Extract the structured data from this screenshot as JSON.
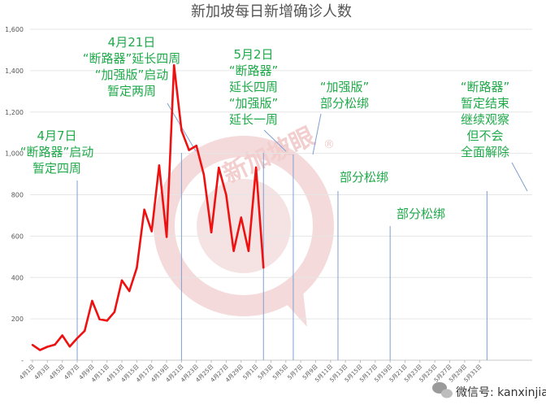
{
  "chart_data": {
    "type": "line",
    "title": "新加坡每日新增确诊人数",
    "xlabel": "",
    "ylabel": "",
    "ylim": [
      0,
      1600
    ],
    "y_ticks": [
      "-",
      "200",
      "400",
      "600",
      "800",
      "1,000",
      "1,200",
      "1,400",
      "1,600"
    ],
    "grid": true,
    "x_ticks": [
      "4月1日",
      "4月3日",
      "4月5日",
      "4月7日",
      "4月9日",
      "4月11日",
      "4月13日",
      "4月15日",
      "4月17日",
      "4月19日",
      "4月21日",
      "4月23日",
      "4月25日",
      "4月27日",
      "4月29日",
      "5月1日",
      "5月3日",
      "5月5日",
      "5月7日",
      "5月9日",
      "5月11日",
      "5月13日",
      "5月15日",
      "5月17日",
      "5月19日",
      "5月21日",
      "5月23日",
      "5月25日",
      "5月27日",
      "5月29日",
      "5月31日"
    ],
    "series": [
      {
        "color": "#ee1111",
        "values": [
          74,
          49,
          65,
          75,
          120,
          66,
          106,
          142,
          287,
          198,
          191,
          233,
          386,
          334,
          447,
          728,
          623,
          942,
          596,
          1426,
          1111,
          1016,
          1037,
          897,
          618,
          931,
          799,
          528,
          690,
          528,
          932,
          447
        ]
      }
    ],
    "markers": [
      {
        "day": 7,
        "lines": [
          "4月7日",
          "“断路器”启动",
          "暂定四周"
        ]
      },
      {
        "day": 21,
        "lines": [
          "4月21日",
          "“断路器”延长四周",
          "“加强版”启动",
          "暂定两周"
        ]
      },
      {
        "day": 32,
        "lines": [
          "5月2日",
          "“断路器”",
          "延长四周",
          "“加强版”",
          "延长一周"
        ]
      },
      {
        "day": 36,
        "lines": [
          "“加强版”",
          "部分松绑"
        ]
      },
      {
        "day": 42,
        "lines": [
          "部分松绑"
        ]
      },
      {
        "day": 49,
        "lines": [
          "部分松绑"
        ]
      },
      {
        "day": 62,
        "lines": [
          "“断路器”",
          "暂定结束",
          "继续观察",
          "但不会",
          "全面解除"
        ]
      }
    ]
  },
  "watermark": {
    "text": "新加坡眼",
    "mark": "®",
    "color": "#f3d0d0"
  },
  "footer": {
    "icon": "wechat-icon",
    "text": "微信号: kanxinjiapo"
  }
}
